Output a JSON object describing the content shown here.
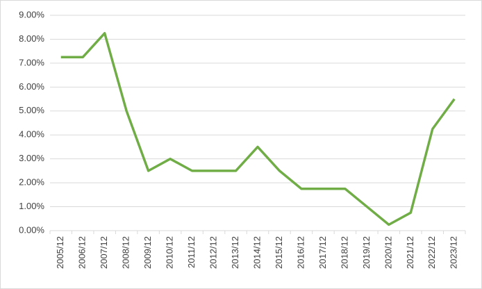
{
  "chart_data": {
    "type": "line",
    "categories": [
      "2005/12",
      "2006/12",
      "2007/12",
      "2008/12",
      "2009/12",
      "2010/12",
      "2011/12",
      "2012/12",
      "2013/12",
      "2014/12",
      "2015/12",
      "2016/12",
      "2017/12",
      "2018/12",
      "2019/12",
      "2020/12",
      "2021/12",
      "2022/12",
      "2023/12"
    ],
    "series": [
      {
        "color": "#70ad47",
        "values": [
          7.25,
          7.25,
          8.25,
          5.0,
          2.5,
          3.0,
          2.5,
          2.5,
          2.5,
          3.5,
          2.5,
          1.75,
          1.75,
          1.75,
          1.0,
          0.25,
          0.75,
          4.25,
          5.5
        ]
      }
    ],
    "ylim": [
      0,
      9
    ],
    "yticks": [
      {
        "value": 0,
        "label": "0.00%"
      },
      {
        "value": 1,
        "label": "1.00%"
      },
      {
        "value": 2,
        "label": "2.00%"
      },
      {
        "value": 3,
        "label": "3.00%"
      },
      {
        "value": 4,
        "label": "4.00%"
      },
      {
        "value": 5,
        "label": "5.00%"
      },
      {
        "value": 6,
        "label": "6.00%"
      },
      {
        "value": 7,
        "label": "7.00%"
      },
      {
        "value": 8,
        "label": "8.00%"
      },
      {
        "value": 9,
        "label": "9.00%"
      }
    ],
    "grid": true
  }
}
